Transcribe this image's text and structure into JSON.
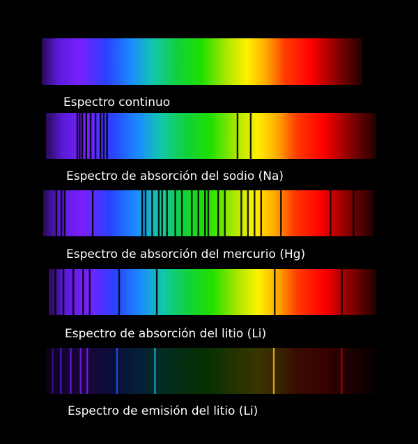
{
  "spectra": [
    {
      "label": "Espectro continuo",
      "kind": "continuous",
      "lines": []
    },
    {
      "label": "Espectro de absorción del sodio (Na)",
      "kind": "absorption",
      "lines": [
        0.095,
        0.102,
        0.11,
        0.122,
        0.135,
        0.15,
        0.165,
        0.175,
        0.185,
        0.58,
        0.62
      ]
    },
    {
      "label": "Espectro de absorción del mercurio (Hg)",
      "kind": "absorption",
      "lines": [
        0.04,
        0.055,
        0.065,
        0.15,
        0.3,
        0.31,
        0.33,
        0.35,
        0.36,
        0.375,
        0.4,
        0.42,
        0.45,
        0.47,
        0.49,
        0.5,
        0.53,
        0.55,
        0.6,
        0.62,
        0.64,
        0.66,
        0.72,
        0.87,
        0.94
      ]
    },
    {
      "label": "Espectro de absorción del litio (Li)",
      "kind": "absorption",
      "lines": [
        0.02,
        0.045,
        0.075,
        0.105,
        0.125,
        0.215,
        0.33,
        0.69,
        0.895
      ]
    },
    {
      "label": "Espectro de emisión del litio (Li)",
      "kind": "emission",
      "lines": [
        0.02,
        0.045,
        0.075,
        0.105,
        0.125,
        0.215,
        0.33,
        0.69,
        0.895
      ]
    }
  ]
}
